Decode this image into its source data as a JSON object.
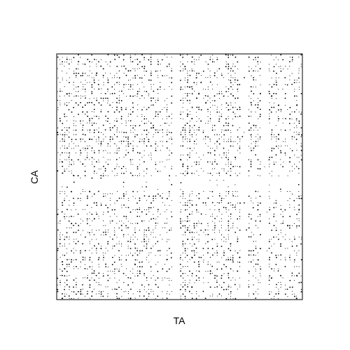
{
  "chart_data": {
    "type": "scatter",
    "title": "",
    "xlabel": "TA",
    "ylabel": "CA",
    "ticks": "none",
    "grid": false,
    "legend": "none",
    "marker_color": "#000000",
    "frame_color": "#000000",
    "background": "#ffffff",
    "density": {
      "grid": 36,
      "sparse_columns": [
        17,
        27,
        30
      ],
      "semi_sparse_columns": [
        15,
        21,
        33
      ],
      "sparse_rows": [
        18,
        19
      ],
      "dense_rows": [
        11,
        12
      ],
      "dense_columns": [
        1,
        18,
        19,
        25
      ]
    }
  }
}
